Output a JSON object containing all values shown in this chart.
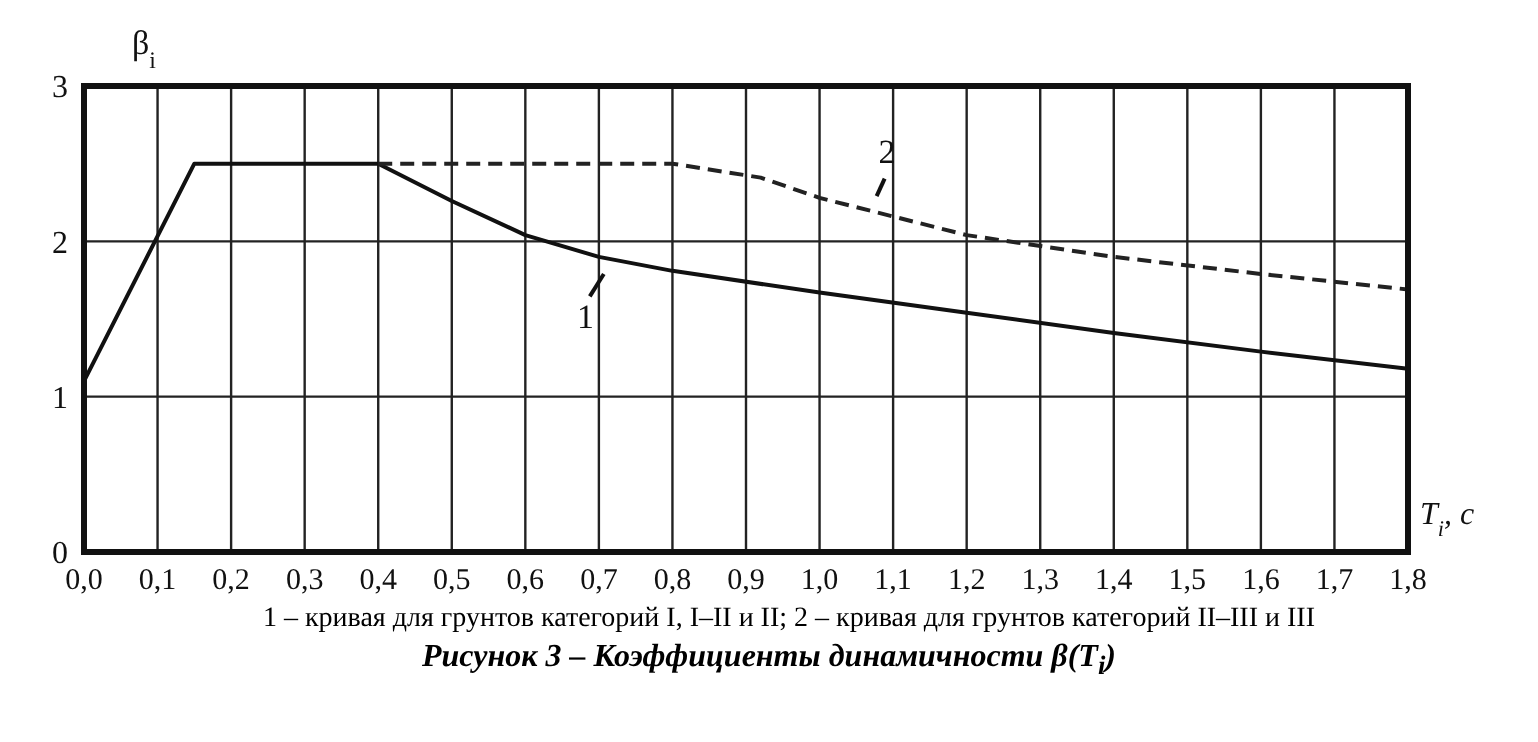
{
  "chart_data": {
    "type": "line",
    "title": "Рисунок 3 – Коэффициенты динамичности β(T$_{i}$)",
    "xlabel": "T$_{i}$, с",
    "ylabel": "β$_{i}$",
    "annotations": [
      {
        "text": "1",
        "x": 0.72,
        "y": 1.88
      },
      {
        "text": "2",
        "x": 1.07,
        "y": 2.22
      },
      "1 – кривая для грунтов категорий I, I–II и II; 2 – кривая для грунтов категорий II–III и III"
    ],
    "series": [
      {
        "color": "#111111",
        "line_style": "solid",
        "x": [
          0,
          0.15,
          0.4,
          0.5,
          0.6,
          0.7,
          0.8,
          1.0,
          1.2,
          1.4,
          1.6,
          1.8
        ],
        "values": [
          1.1,
          2.5,
          2.5,
          2.26,
          2.04,
          1.9,
          1.81,
          1.67,
          1.54,
          1.41,
          1.29,
          1.18
        ]
      },
      {
        "color": "#222222",
        "line_style": "dashed",
        "x": [
          0.4,
          0.8,
          0.92,
          1.0,
          1.2,
          1.4,
          1.6,
          1.8
        ],
        "values": [
          2.5,
          2.5,
          2.41,
          2.28,
          2.04,
          1.9,
          1.79,
          1.69
        ]
      }
    ],
    "xlim": [
      0,
      1.8
    ],
    "xticks": [
      {
        "value": 0,
        "label": "0,0"
      },
      {
        "value": 0.1,
        "label": "0,1"
      },
      {
        "value": 0.2,
        "label": "0,2"
      },
      {
        "value": 0.3,
        "label": "0,3"
      },
      {
        "value": 0.4,
        "label": "0,4"
      },
      {
        "value": 0.5,
        "label": "0,5"
      },
      {
        "value": 0.6,
        "label": "0,6"
      },
      {
        "value": 0.7,
        "label": "0,7"
      },
      {
        "value": 0.8,
        "label": "0,8"
      },
      {
        "value": 0.9,
        "label": "0,9"
      },
      {
        "value": 1.0,
        "label": "1,0"
      },
      {
        "value": 1.1,
        "label": "1,1"
      },
      {
        "value": 1.2,
        "label": "1,2"
      },
      {
        "value": 1.3,
        "label": "1,3"
      },
      {
        "value": 1.4,
        "label": "1,4"
      },
      {
        "value": 1.5,
        "label": "1,5"
      },
      {
        "value": 1.6,
        "label": "1,6"
      },
      {
        "value": 1.7,
        "label": "1,7"
      },
      {
        "value": 1.8,
        "label": "1,8"
      }
    ],
    "ylim": [
      0,
      3
    ],
    "yticks": [
      0,
      1,
      2,
      3
    ],
    "grid": true,
    "marker": "none"
  }
}
